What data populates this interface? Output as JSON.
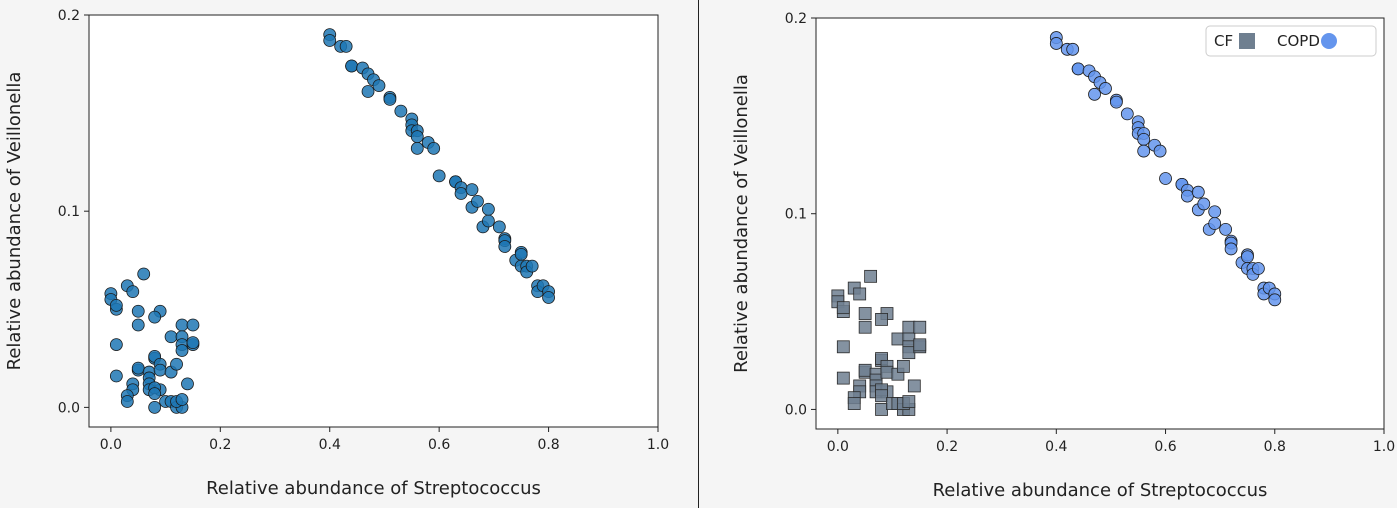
{
  "chart_data": [
    {
      "type": "scatter",
      "title": "",
      "xlabel": "Relative abundance of Streptococcus",
      "ylabel": "Relative abundance of Veillonella",
      "xlim": [
        -0.04,
        1.0
      ],
      "ylim": [
        -0.01,
        0.2
      ],
      "xticks": [
        "0.0",
        "0.2",
        "0.4",
        "0.6",
        "0.8",
        "1.0"
      ],
      "yticks": [
        "0.0",
        "0.1",
        "0.2"
      ],
      "grid": false,
      "series": [
        {
          "color": "#1f77b4",
          "marker": "circle",
          "points": [
            [
              0.0,
              0.058
            ],
            [
              0.0,
              0.055
            ],
            [
              0.01,
              0.05
            ],
            [
              0.01,
              0.052
            ],
            [
              0.03,
              0.062
            ],
            [
              0.04,
              0.059
            ],
            [
              0.06,
              0.068
            ],
            [
              0.05,
              0.049
            ],
            [
              0.09,
              0.049
            ],
            [
              0.05,
              0.042
            ],
            [
              0.08,
              0.046
            ],
            [
              0.01,
              0.032
            ],
            [
              0.01,
              0.016
            ],
            [
              0.04,
              0.012
            ],
            [
              0.04,
              0.009
            ],
            [
              0.03,
              0.006
            ],
            [
              0.03,
              0.003
            ],
            [
              0.05,
              0.019
            ],
            [
              0.05,
              0.02
            ],
            [
              0.07,
              0.018
            ],
            [
              0.07,
              0.015
            ],
            [
              0.07,
              0.012
            ],
            [
              0.07,
              0.009
            ],
            [
              0.08,
              0.025
            ],
            [
              0.08,
              0.026
            ],
            [
              0.09,
              0.022
            ],
            [
              0.09,
              0.019
            ],
            [
              0.09,
              0.009
            ],
            [
              0.08,
              0.01
            ],
            [
              0.08,
              0.007
            ],
            [
              0.08,
              0.0
            ],
            [
              0.1,
              0.003
            ],
            [
              0.11,
              0.003
            ],
            [
              0.11,
              0.018
            ],
            [
              0.11,
              0.036
            ],
            [
              0.12,
              0.022
            ],
            [
              0.12,
              0.0
            ],
            [
              0.13,
              0.0
            ],
            [
              0.12,
              0.003
            ],
            [
              0.13,
              0.004
            ],
            [
              0.13,
              0.042
            ],
            [
              0.13,
              0.036
            ],
            [
              0.13,
              0.032
            ],
            [
              0.13,
              0.029
            ],
            [
              0.14,
              0.012
            ],
            [
              0.15,
              0.042
            ],
            [
              0.15,
              0.032
            ],
            [
              0.15,
              0.033
            ],
            [
              0.4,
              0.19
            ],
            [
              0.4,
              0.187
            ],
            [
              0.42,
              0.184
            ],
            [
              0.43,
              0.184
            ],
            [
              0.44,
              0.174
            ],
            [
              0.44,
              0.174
            ],
            [
              0.46,
              0.173
            ],
            [
              0.47,
              0.17
            ],
            [
              0.48,
              0.167
            ],
            [
              0.47,
              0.161
            ],
            [
              0.49,
              0.164
            ],
            [
              0.51,
              0.158
            ],
            [
              0.51,
              0.157
            ],
            [
              0.53,
              0.151
            ],
            [
              0.55,
              0.147
            ],
            [
              0.55,
              0.144
            ],
            [
              0.55,
              0.141
            ],
            [
              0.56,
              0.141
            ],
            [
              0.56,
              0.138
            ],
            [
              0.56,
              0.132
            ],
            [
              0.58,
              0.135
            ],
            [
              0.59,
              0.132
            ],
            [
              0.6,
              0.118
            ],
            [
              0.63,
              0.115
            ],
            [
              0.63,
              0.115
            ],
            [
              0.64,
              0.112
            ],
            [
              0.64,
              0.109
            ],
            [
              0.66,
              0.111
            ],
            [
              0.66,
              0.102
            ],
            [
              0.67,
              0.105
            ],
            [
              0.68,
              0.092
            ],
            [
              0.69,
              0.095
            ],
            [
              0.69,
              0.101
            ],
            [
              0.71,
              0.092
            ],
            [
              0.72,
              0.086
            ],
            [
              0.72,
              0.085
            ],
            [
              0.72,
              0.082
            ],
            [
              0.74,
              0.075
            ],
            [
              0.75,
              0.079
            ],
            [
              0.75,
              0.078
            ],
            [
              0.75,
              0.072
            ],
            [
              0.76,
              0.072
            ],
            [
              0.76,
              0.069
            ],
            [
              0.77,
              0.072
            ],
            [
              0.78,
              0.062
            ],
            [
              0.78,
              0.059
            ],
            [
              0.79,
              0.062
            ],
            [
              0.8,
              0.059
            ],
            [
              0.8,
              0.056
            ]
          ]
        }
      ]
    },
    {
      "type": "scatter",
      "title": "",
      "xlabel": "Relative abundance of Streptococcus",
      "ylabel": "Relative abundance of Veillonella",
      "xlim": [
        -0.04,
        1.0
      ],
      "ylim": [
        -0.01,
        0.2
      ],
      "xticks": [
        "0.0",
        "0.2",
        "0.4",
        "0.6",
        "0.8",
        "1.0"
      ],
      "yticks": [
        "0.0",
        "0.1",
        "0.2"
      ],
      "grid": false,
      "legend": "top-right",
      "series": [
        {
          "name": "CF",
          "color": "#6f7f90",
          "marker": "square",
          "points": [
            [
              0.0,
              0.058
            ],
            [
              0.0,
              0.055
            ],
            [
              0.01,
              0.05
            ],
            [
              0.01,
              0.052
            ],
            [
              0.03,
              0.062
            ],
            [
              0.04,
              0.059
            ],
            [
              0.06,
              0.068
            ],
            [
              0.05,
              0.049
            ],
            [
              0.09,
              0.049
            ],
            [
              0.05,
              0.042
            ],
            [
              0.08,
              0.046
            ],
            [
              0.01,
              0.032
            ],
            [
              0.01,
              0.016
            ],
            [
              0.04,
              0.012
            ],
            [
              0.04,
              0.009
            ],
            [
              0.03,
              0.006
            ],
            [
              0.03,
              0.003
            ],
            [
              0.05,
              0.019
            ],
            [
              0.05,
              0.02
            ],
            [
              0.07,
              0.018
            ],
            [
              0.07,
              0.015
            ],
            [
              0.07,
              0.012
            ],
            [
              0.07,
              0.009
            ],
            [
              0.08,
              0.025
            ],
            [
              0.08,
              0.026
            ],
            [
              0.09,
              0.022
            ],
            [
              0.09,
              0.019
            ],
            [
              0.09,
              0.009
            ],
            [
              0.08,
              0.01
            ],
            [
              0.08,
              0.007
            ],
            [
              0.08,
              0.0
            ],
            [
              0.1,
              0.003
            ],
            [
              0.11,
              0.003
            ],
            [
              0.11,
              0.018
            ],
            [
              0.11,
              0.036
            ],
            [
              0.12,
              0.022
            ],
            [
              0.12,
              0.0
            ],
            [
              0.13,
              0.0
            ],
            [
              0.12,
              0.003
            ],
            [
              0.13,
              0.004
            ],
            [
              0.13,
              0.042
            ],
            [
              0.13,
              0.036
            ],
            [
              0.13,
              0.032
            ],
            [
              0.13,
              0.029
            ],
            [
              0.14,
              0.012
            ],
            [
              0.15,
              0.042
            ],
            [
              0.15,
              0.032
            ],
            [
              0.15,
              0.033
            ]
          ]
        },
        {
          "name": "COPD",
          "color": "#6495ed",
          "marker": "circle",
          "points": [
            [
              0.4,
              0.19
            ],
            [
              0.4,
              0.187
            ],
            [
              0.42,
              0.184
            ],
            [
              0.43,
              0.184
            ],
            [
              0.44,
              0.174
            ],
            [
              0.44,
              0.174
            ],
            [
              0.46,
              0.173
            ],
            [
              0.47,
              0.17
            ],
            [
              0.48,
              0.167
            ],
            [
              0.47,
              0.161
            ],
            [
              0.49,
              0.164
            ],
            [
              0.51,
              0.158
            ],
            [
              0.51,
              0.157
            ],
            [
              0.53,
              0.151
            ],
            [
              0.55,
              0.147
            ],
            [
              0.55,
              0.144
            ],
            [
              0.55,
              0.141
            ],
            [
              0.56,
              0.141
            ],
            [
              0.56,
              0.138
            ],
            [
              0.56,
              0.132
            ],
            [
              0.58,
              0.135
            ],
            [
              0.59,
              0.132
            ],
            [
              0.6,
              0.118
            ],
            [
              0.63,
              0.115
            ],
            [
              0.63,
              0.115
            ],
            [
              0.64,
              0.112
            ],
            [
              0.64,
              0.109
            ],
            [
              0.66,
              0.111
            ],
            [
              0.66,
              0.102
            ],
            [
              0.67,
              0.105
            ],
            [
              0.68,
              0.092
            ],
            [
              0.69,
              0.095
            ],
            [
              0.69,
              0.101
            ],
            [
              0.71,
              0.092
            ],
            [
              0.72,
              0.086
            ],
            [
              0.72,
              0.085
            ],
            [
              0.72,
              0.082
            ],
            [
              0.74,
              0.075
            ],
            [
              0.75,
              0.079
            ],
            [
              0.75,
              0.078
            ],
            [
              0.75,
              0.072
            ],
            [
              0.76,
              0.072
            ],
            [
              0.76,
              0.069
            ],
            [
              0.77,
              0.072
            ],
            [
              0.78,
              0.062
            ],
            [
              0.78,
              0.059
            ],
            [
              0.79,
              0.062
            ],
            [
              0.8,
              0.059
            ],
            [
              0.8,
              0.056
            ]
          ]
        }
      ]
    }
  ]
}
